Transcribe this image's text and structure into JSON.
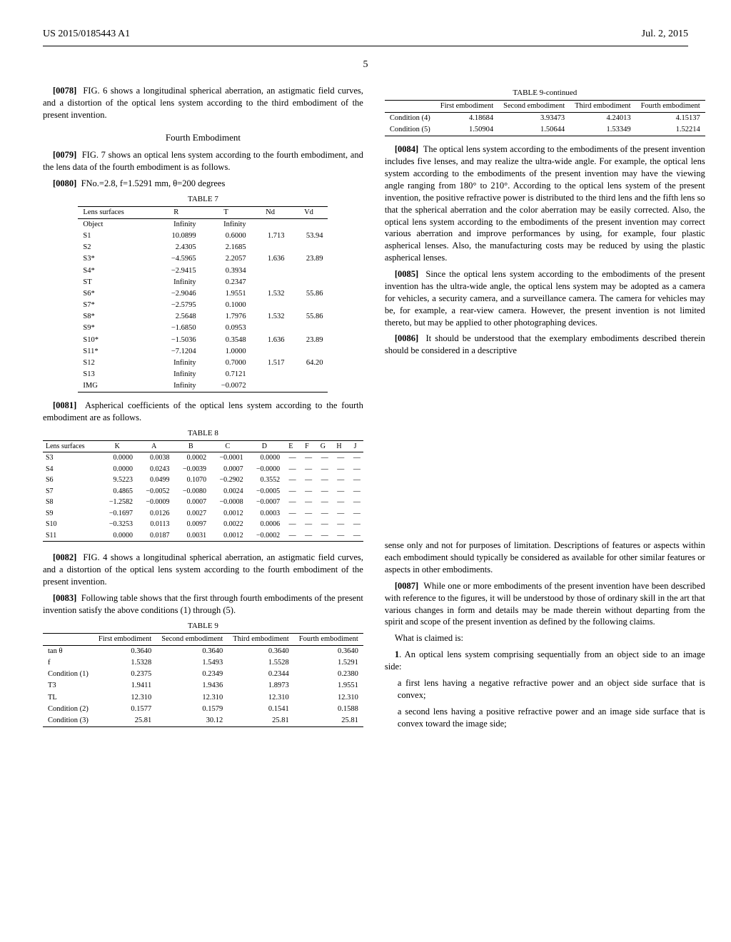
{
  "header": {
    "left": "US 2015/0185443 A1",
    "right": "Jul. 2, 2015"
  },
  "page_number": "5",
  "p0078": {
    "num": "[0078]",
    "text": "FIG. 6 shows a longitudinal spherical aberration, an astigmatic field curves, and a distortion of the optical lens system according to the third embodiment of the present invention."
  },
  "sec4_head": "Fourth Embodiment",
  "p0079": {
    "num": "[0079]",
    "text": "FIG. 7 shows an optical lens system according to the fourth embodiment, and the lens data of the fourth embodiment is as follows."
  },
  "p0080": {
    "num": "[0080]",
    "text": "FNo.=2.8, f=1.5291 mm, θ=200 degrees"
  },
  "table7": {
    "caption": "TABLE 7",
    "columns": [
      "Lens surfaces",
      "R",
      "T",
      "Nd",
      "Vd"
    ],
    "rows": [
      [
        "Object",
        "Infinity",
        "Infinity",
        "",
        ""
      ],
      [
        "S1",
        "10.0899",
        "0.6000",
        "1.713",
        "53.94"
      ],
      [
        "S2",
        "2.4305",
        "2.1685",
        "",
        ""
      ],
      [
        "S3*",
        "−4.5965",
        "2.2057",
        "1.636",
        "23.89"
      ],
      [
        "S4*",
        "−2.9415",
        "0.3934",
        "",
        ""
      ],
      [
        "ST",
        "Infinity",
        "0.2347",
        "",
        ""
      ],
      [
        "S6*",
        "−2.9046",
        "1.9551",
        "1.532",
        "55.86"
      ],
      [
        "S7*",
        "−2.5795",
        "0.1000",
        "",
        ""
      ],
      [
        "S8*",
        "2.5648",
        "1.7976",
        "1.532",
        "55.86"
      ],
      [
        "S9*",
        "−1.6850",
        "0.0953",
        "",
        ""
      ],
      [
        "S10*",
        "−1.5036",
        "0.3548",
        "1.636",
        "23.89"
      ],
      [
        "S11*",
        "−7.1204",
        "1.0000",
        "",
        ""
      ],
      [
        "S12",
        "Infinity",
        "0.7000",
        "1.517",
        "64.20"
      ],
      [
        "S13",
        "Infinity",
        "0.7121",
        "",
        ""
      ],
      [
        "IMG",
        "Infinity",
        "−0.0072",
        "",
        ""
      ]
    ]
  },
  "p0081": {
    "num": "[0081]",
    "text": "Aspherical coefficients of the optical lens system according to the fourth embodiment are as follows."
  },
  "table8": {
    "caption": "TABLE 8",
    "columns": [
      "Lens surfaces",
      "K",
      "A",
      "B",
      "C",
      "D",
      "E",
      "F",
      "G",
      "H",
      "J"
    ],
    "rows": [
      [
        "S3",
        "0.0000",
        "0.0038",
        "0.0002",
        "−0.0001",
        "0.0000",
        "—",
        "—",
        "—",
        "—",
        "—"
      ],
      [
        "S4",
        "0.0000",
        "0.0243",
        "−0.0039",
        "0.0007",
        "−0.0000",
        "—",
        "—",
        "—",
        "—",
        "—"
      ],
      [
        "S6",
        "9.5223",
        "0.0499",
        "0.1070",
        "−0.2902",
        "0.3552",
        "—",
        "—",
        "—",
        "—",
        "—"
      ],
      [
        "S7",
        "0.4865",
        "−0.0052",
        "−0.0080",
        "0.0024",
        "−0.0005",
        "—",
        "—",
        "—",
        "—",
        "—"
      ],
      [
        "S8",
        "−1.2582",
        "−0.0009",
        "0.0007",
        "−0.0008",
        "−0.0007",
        "—",
        "—",
        "—",
        "—",
        "—"
      ],
      [
        "S9",
        "−0.1697",
        "0.0126",
        "0.0027",
        "0.0012",
        "0.0003",
        "—",
        "—",
        "—",
        "—",
        "—"
      ],
      [
        "S10",
        "−0.3253",
        "0.0113",
        "0.0097",
        "0.0022",
        "0.0006",
        "—",
        "—",
        "—",
        "—",
        "—"
      ],
      [
        "S11",
        "0.0000",
        "0.0187",
        "0.0031",
        "0.0012",
        "−0.0002",
        "—",
        "—",
        "—",
        "—",
        "—"
      ]
    ]
  },
  "p0082": {
    "num": "[0082]",
    "text": "FIG. 4 shows a longitudinal spherical aberration, an astigmatic field curves, and a distortion of the optical lens system according to the fourth embodiment of the present invention."
  },
  "p0083": {
    "num": "[0083]",
    "text": "Following table shows that the first through fourth embodiments of the present invention satisfy the above conditions (1) through (5)."
  },
  "table9": {
    "caption": "TABLE 9",
    "columns": [
      "",
      "First embodiment",
      "Second embodiment",
      "Third embodiment",
      "Fourth embodiment"
    ],
    "rows": [
      [
        "tan θ",
        "0.3640",
        "0.3640",
        "0.3640",
        "0.3640"
      ],
      [
        "f",
        "1.5328",
        "1.5493",
        "1.5528",
        "1.5291"
      ],
      [
        "Condition (1)",
        "0.2375",
        "0.2349",
        "0.2344",
        "0.2380"
      ],
      [
        "T3",
        "1.9411",
        "1.9436",
        "1.8973",
        "1.9551"
      ],
      [
        "TL",
        "12.310",
        "12.310",
        "12.310",
        "12.310"
      ],
      [
        "Condition (2)",
        "0.1577",
        "0.1579",
        "0.1541",
        "0.1588"
      ],
      [
        "Condition (3)",
        "25.81",
        "30.12",
        "25.81",
        "25.81"
      ]
    ]
  },
  "table9c": {
    "caption": "TABLE 9-continued",
    "columns": [
      "",
      "First embodiment",
      "Second embodiment",
      "Third embodiment",
      "Fourth embodiment"
    ],
    "rows": [
      [
        "Condition (4)",
        "4.18684",
        "3.93473",
        "4.24013",
        "4.15137"
      ],
      [
        "Condition (5)",
        "1.50904",
        "1.50644",
        "1.53349",
        "1.52214"
      ]
    ]
  },
  "p0084": {
    "num": "[0084]",
    "text": "The optical lens system according to the embodiments of the present invention includes five lenses, and may realize the ultra-wide angle. For example, the optical lens system according to the embodiments of the present invention may have the viewing angle ranging from 180° to 210°. According to the optical lens system of the present invention, the positive refractive power is distributed to the third lens and the fifth lens so that the spherical aberration and the color aberration may be easily corrected. Also, the optical lens system according to the embodiments of the present invention may correct various aberration and improve performances by using, for example, four plastic aspherical lenses. Also, the manufacturing costs may be reduced by using the plastic aspherical lenses."
  },
  "p0085": {
    "num": "[0085]",
    "text": "Since the optical lens system according to the embodiments of the present invention has the ultra-wide angle, the optical lens system may be adopted as a camera for vehicles, a security camera, and a surveillance camera. The camera for vehicles may be, for example, a rear-view camera. However, the present invention is not limited thereto, but may be applied to other photographing devices."
  },
  "p0086": {
    "num": "[0086]",
    "text": "It should be understood that the exemplary embodiments described therein should be considered in a descriptive"
  },
  "p_right_lower1": "sense only and not for purposes of limitation. Descriptions of features or aspects within each embodiment should typically be considered as available for other similar features or aspects in other embodiments.",
  "p0087": {
    "num": "[0087]",
    "text": "While one or more embodiments of the present invention have been described with reference to the figures, it will be understood by those of ordinary skill in the art that various changes in form and details may be made therein without departing from the spirit and scope of the present invention as defined by the following claims."
  },
  "claims_intro": "What is claimed is:",
  "claim1_lead": "1. An optical lens system comprising sequentially from an object side to an image side:",
  "claim1_a": "a first lens having a negative refractive power and an object side surface that is convex;",
  "claim1_b": "a second lens having a positive refractive power and an image side surface that is convex toward the image side;"
}
